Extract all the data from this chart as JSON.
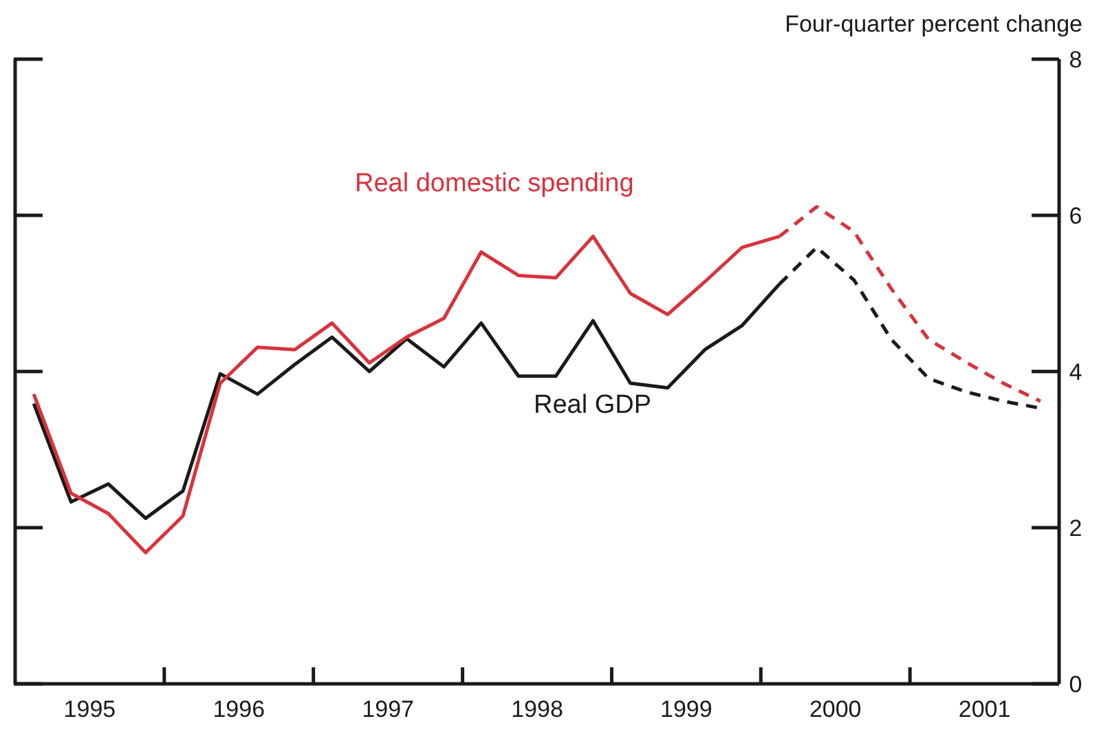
{
  "chart_data": {
    "type": "line",
    "ylabel": "Four-quarter percent change",
    "x": [
      1995.125,
      1995.375,
      1995.625,
      1995.875,
      1996.125,
      1996.375,
      1996.625,
      1996.875,
      1997.125,
      1997.375,
      1997.625,
      1997.875,
      1998.125,
      1998.375,
      1998.625,
      1998.875,
      1999.125,
      1999.375,
      1999.625,
      1999.875,
      2000.125,
      2000.375,
      2000.625,
      2000.875,
      2001.125,
      2001.375,
      2001.625,
      2001.875
    ],
    "series": [
      {
        "name": "Real GDP",
        "color": "#1a1a1a",
        "line_style": "solid",
        "values": [
          3.59,
          2.33,
          2.56,
          2.12,
          2.47,
          3.97,
          3.71,
          4.09,
          4.44,
          4.0,
          4.42,
          4.06,
          4.62,
          3.94,
          3.94,
          4.65,
          3.85,
          3.79,
          4.28,
          4.59,
          5.12,
          null,
          null,
          null,
          null,
          null,
          null,
          null
        ]
      },
      {
        "color": "#1a1a1a",
        "line_style": "dashed",
        "values": [
          null,
          null,
          null,
          null,
          null,
          null,
          null,
          null,
          null,
          null,
          null,
          null,
          null,
          null,
          null,
          null,
          null,
          null,
          null,
          null,
          5.12,
          5.59,
          5.17,
          4.41,
          3.91,
          3.74,
          3.62,
          3.53
        ]
      },
      {
        "name": "Real domestic spending",
        "color": "#d9323c",
        "line_style": "solid",
        "values": [
          3.71,
          2.44,
          2.18,
          1.68,
          2.15,
          3.85,
          4.31,
          4.28,
          4.62,
          4.11,
          4.44,
          4.68,
          5.53,
          5.23,
          5.2,
          5.73,
          5.0,
          4.73,
          5.15,
          5.59,
          5.73,
          null,
          null,
          null,
          null,
          null,
          null,
          null
        ]
      },
      {
        "color": "#d9323c",
        "line_style": "dashed",
        "values": [
          null,
          null,
          null,
          null,
          null,
          null,
          null,
          null,
          null,
          null,
          null,
          null,
          null,
          null,
          null,
          null,
          null,
          null,
          null,
          null,
          5.73,
          6.11,
          5.79,
          5.06,
          4.41,
          4.12,
          3.85,
          3.62
        ]
      }
    ],
    "xlim": [
      1995,
      2002
    ],
    "xticks": [
      {
        "value": 1995.5,
        "label": "1995"
      },
      {
        "value": 1996,
        "label": null
      },
      {
        "value": 1996.5,
        "label": "1996"
      },
      {
        "value": 1997,
        "label": null
      },
      {
        "value": 1997.5,
        "label": "1997"
      },
      {
        "value": 1998,
        "label": null
      },
      {
        "value": 1998.5,
        "label": "1998"
      },
      {
        "value": 1999,
        "label": null
      },
      {
        "value": 1999.5,
        "label": "1999"
      },
      {
        "value": 2000,
        "label": null
      },
      {
        "value": 2000.5,
        "label": "2000"
      },
      {
        "value": 2001,
        "label": null
      },
      {
        "value": 2001.5,
        "label": "2001"
      }
    ],
    "ylim": [
      0,
      8
    ],
    "yticks": [
      0,
      2,
      4,
      6,
      8
    ],
    "marker": "none"
  }
}
